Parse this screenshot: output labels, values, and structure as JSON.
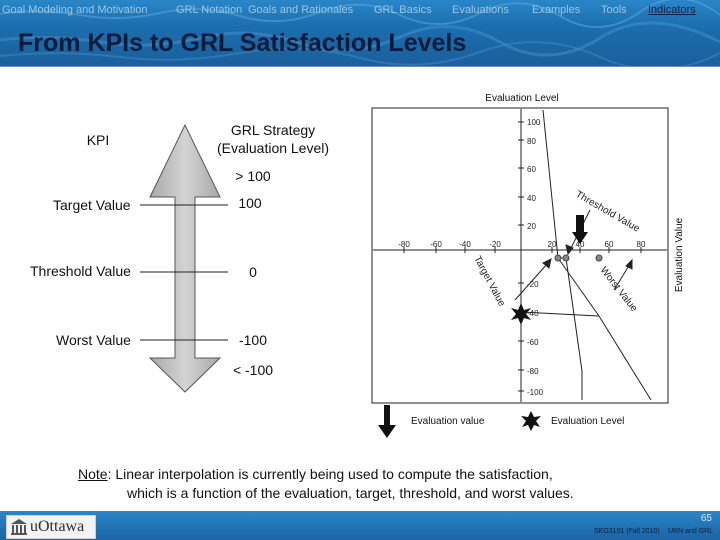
{
  "nav": {
    "items": [
      {
        "label": "Goal Modeling and Motivation",
        "active": false
      },
      {
        "label": "GRL Notation",
        "active": false
      },
      {
        "label": "Goals and Rationales",
        "active": false
      },
      {
        "label": "GRL Basics",
        "active": false
      },
      {
        "label": "Evaluations",
        "active": false
      },
      {
        "label": "Examples",
        "active": false
      },
      {
        "label": "Tools",
        "active": false
      },
      {
        "label": "Indicators",
        "active": true
      }
    ]
  },
  "slide": {
    "title": "From KPIs to GRL Satisfaction Levels"
  },
  "left_diagram": {
    "kpi_label": "KPI",
    "strategy_label_line1": "GRL Strategy",
    "strategy_label_line2": "(Evaluation Level)",
    "rows": [
      {
        "kpi": "",
        "value": "> 100"
      },
      {
        "kpi": "Target Value",
        "value": "100"
      },
      {
        "kpi": "Threshold Value",
        "value": "0"
      },
      {
        "kpi": "Worst Value",
        "value": "-100"
      },
      {
        "kpi": "",
        "value": "< -100"
      }
    ]
  },
  "right_diagram": {
    "y_axis_title": "Evaluation Level",
    "x_axis_title": "Evaluation Value",
    "y_ticks": [
      "100",
      "80",
      "60",
      "40",
      "20",
      "-20",
      "-40",
      "-60",
      "-80",
      "-100"
    ],
    "x_ticks": [
      "-80",
      "-60",
      "-40",
      "-20",
      "20",
      "40",
      "60",
      "80"
    ],
    "threshold_label": "Threshold Value",
    "target_label": "Target Value",
    "worst_label": "Worst Value",
    "legend_value": "Evaluation value",
    "legend_level": "Evaluation Level"
  },
  "note": {
    "label": "Note",
    "line1": ":  Linear interpolation is currently being used to compute the satisfaction,",
    "line2": "which is a function of the evaluation, target, threshold, and worst values."
  },
  "footer": {
    "logo_text": "uOttawa",
    "page_number": "65",
    "course": "SEG3101 (Fall 2010)",
    "deck_title": "URN and GRL"
  }
}
